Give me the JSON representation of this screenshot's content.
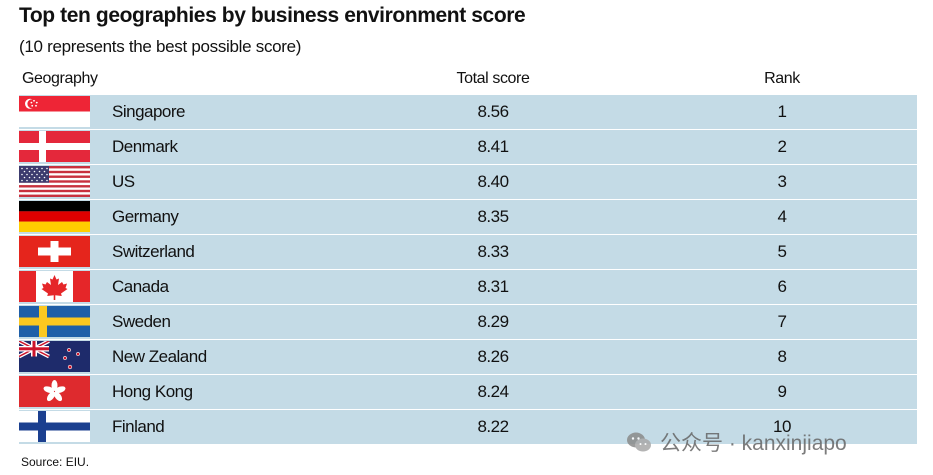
{
  "header": {
    "title": "Top ten geographies by business environment score",
    "subtitle": "(10 represents the best possible score)"
  },
  "columns": {
    "geography": "Geography",
    "score": "Total score",
    "rank": "Rank"
  },
  "rows": [
    {
      "geography": "Singapore",
      "score": "8.56",
      "rank": "1",
      "flag": "singapore-flag-icon"
    },
    {
      "geography": "Denmark",
      "score": "8.41",
      "rank": "2",
      "flag": "denmark-flag-icon"
    },
    {
      "geography": "US",
      "score": "8.40",
      "rank": "3",
      "flag": "us-flag-icon"
    },
    {
      "geography": "Germany",
      "score": "8.35",
      "rank": "4",
      "flag": "germany-flag-icon"
    },
    {
      "geography": "Switzerland",
      "score": "8.33",
      "rank": "5",
      "flag": "switzerland-flag-icon"
    },
    {
      "geography": "Canada",
      "score": "8.31",
      "rank": "6",
      "flag": "canada-flag-icon"
    },
    {
      "geography": "Sweden",
      "score": "8.29",
      "rank": "7",
      "flag": "sweden-flag-icon"
    },
    {
      "geography": "New Zealand",
      "score": "8.26",
      "rank": "8",
      "flag": "new-zealand-flag-icon"
    },
    {
      "geography": "Hong Kong",
      "score": "8.24",
      "rank": "9",
      "flag": "hong-kong-flag-icon"
    },
    {
      "geography": "Finland",
      "score": "8.22",
      "rank": "10",
      "flag": "finland-flag-icon"
    }
  ],
  "chart_data": {
    "type": "table",
    "title": "Top ten geographies by business environment score",
    "subtitle": "(10 represents the best possible score)",
    "columns": [
      "Geography",
      "Total score",
      "Rank"
    ],
    "categories": [
      "Singapore",
      "Denmark",
      "US",
      "Germany",
      "Switzerland",
      "Canada",
      "Sweden",
      "New Zealand",
      "Hong Kong",
      "Finland"
    ],
    "values": [
      8.56,
      8.41,
      8.4,
      8.35,
      8.33,
      8.31,
      8.29,
      8.26,
      8.24,
      8.22
    ],
    "ranks": [
      1,
      2,
      3,
      4,
      5,
      6,
      7,
      8,
      9,
      10
    ]
  },
  "colors": {
    "row_background": "#c4dbe6",
    "row_divider": "#ffffff"
  },
  "footer": {
    "source": "Source: EIU.",
    "watermark": "公众号 · kanxinjiapo",
    "watermark_icon": "wechat-icon"
  }
}
